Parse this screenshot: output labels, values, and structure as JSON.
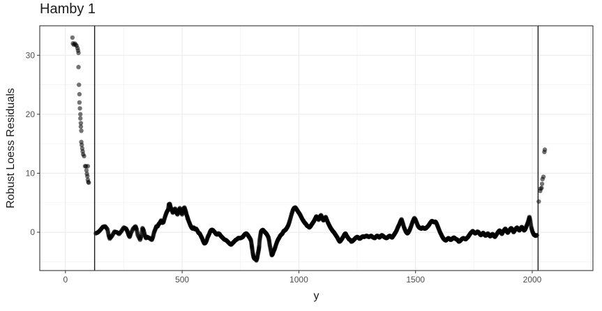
{
  "chart_data": {
    "type": "scatter",
    "title": "Hamby 1",
    "xlabel": "y",
    "ylabel": "Robust Loess Residuals",
    "xlim": [
      -110,
      2260
    ],
    "ylim": [
      -6.5,
      35
    ],
    "x_ticks": [
      0,
      500,
      1000,
      1500,
      2000
    ],
    "x_tick_labels": [
      "0",
      "500",
      "1000",
      "1500",
      "2000"
    ],
    "y_ticks": [
      0,
      10,
      20,
      30
    ],
    "y_tick_labels": [
      "0",
      "10",
      "20",
      "30"
    ],
    "vlines": [
      125,
      2025
    ],
    "grid": true,
    "theme": "bw",
    "point_color": "#000000",
    "point_alpha": 0.55,
    "left_groove": [
      [
        30,
        33.0
      ],
      [
        32,
        32.0
      ],
      [
        36,
        31.8
      ],
      [
        40,
        32.0
      ],
      [
        44,
        31.8
      ],
      [
        48,
        31.6
      ],
      [
        52,
        31.2
      ],
      [
        54,
        30.8
      ],
      [
        56,
        30.4
      ],
      [
        56,
        28.0
      ],
      [
        58,
        25.0
      ],
      [
        60,
        23.4
      ],
      [
        60,
        22.0
      ],
      [
        62,
        21.0
      ],
      [
        64,
        20.0
      ],
      [
        64,
        19.3
      ],
      [
        66,
        18.5
      ],
      [
        66,
        17.9
      ],
      [
        68,
        17.2
      ],
      [
        68,
        15.3
      ],
      [
        70,
        14.8
      ],
      [
        72,
        14.2
      ],
      [
        74,
        13.7
      ],
      [
        76,
        13.2
      ],
      [
        80,
        12.9
      ],
      [
        84,
        11.2
      ],
      [
        88,
        11.2
      ],
      [
        90,
        10.5
      ],
      [
        92,
        9.9
      ],
      [
        94,
        9.5
      ],
      [
        96,
        8.9
      ],
      [
        98,
        8.5
      ],
      [
        100,
        8.4
      ],
      [
        96,
        11.2
      ]
    ],
    "right_groove": [
      [
        2028,
        5.2
      ],
      [
        2034,
        7.0
      ],
      [
        2036,
        7.4
      ],
      [
        2040,
        7.5
      ],
      [
        2042,
        8.2
      ],
      [
        2044,
        9.0
      ],
      [
        2048,
        9.4
      ],
      [
        2052,
        13.6
      ],
      [
        2054,
        14.0
      ]
    ],
    "trace": [
      [
        130,
        -0.2
      ],
      [
        140,
        0.0
      ],
      [
        150,
        0.4
      ],
      [
        160,
        0.9
      ],
      [
        170,
        1.0
      ],
      [
        180,
        0.5
      ],
      [
        185,
        -0.5
      ],
      [
        190,
        -1.1
      ],
      [
        200,
        -0.6
      ],
      [
        210,
        0.1
      ],
      [
        220,
        0.0
      ],
      [
        230,
        -0.3
      ],
      [
        240,
        0.2
      ],
      [
        250,
        0.8
      ],
      [
        260,
        0.6
      ],
      [
        265,
        0.2
      ],
      [
        270,
        -0.4
      ],
      [
        275,
        -0.8
      ],
      [
        280,
        -0.2
      ],
      [
        290,
        0.6
      ],
      [
        300,
        1.0
      ],
      [
        305,
        0.5
      ],
      [
        310,
        -0.5
      ],
      [
        320,
        -1.3
      ],
      [
        325,
        -0.6
      ],
      [
        330,
        0.7
      ],
      [
        335,
        0.3
      ],
      [
        340,
        -0.5
      ],
      [
        345,
        -1.0
      ],
      [
        350,
        -0.8
      ],
      [
        355,
        -0.9
      ],
      [
        360,
        -1.0
      ],
      [
        370,
        -1.3
      ],
      [
        375,
        -0.8
      ],
      [
        380,
        0.0
      ],
      [
        385,
        0.5
      ],
      [
        390,
        1.0
      ],
      [
        395,
        1.0
      ],
      [
        400,
        1.4
      ],
      [
        405,
        1.6
      ],
      [
        410,
        2.0
      ],
      [
        415,
        1.6
      ],
      [
        420,
        1.7
      ],
      [
        425,
        2.4
      ],
      [
        430,
        3.0
      ],
      [
        435,
        3.5
      ],
      [
        440,
        3.8
      ],
      [
        443,
        4.7
      ],
      [
        447,
        4.8
      ],
      [
        450,
        4.3
      ],
      [
        455,
        3.8
      ],
      [
        460,
        3.3
      ],
      [
        465,
        3.7
      ],
      [
        470,
        4.0
      ],
      [
        475,
        3.4
      ],
      [
        480,
        3.0
      ],
      [
        485,
        3.6
      ],
      [
        490,
        4.1
      ],
      [
        495,
        3.5
      ],
      [
        500,
        3.0
      ],
      [
        505,
        3.9
      ],
      [
        510,
        4.2
      ],
      [
        515,
        3.6
      ],
      [
        518,
        3.1
      ],
      [
        522,
        2.6
      ],
      [
        525,
        2.2
      ],
      [
        530,
        1.7
      ],
      [
        535,
        1.2
      ],
      [
        540,
        0.8
      ],
      [
        545,
        0.6
      ],
      [
        550,
        0.8
      ],
      [
        555,
        0.5
      ],
      [
        560,
        0.6
      ],
      [
        565,
        0.3
      ],
      [
        570,
        -0.1
      ],
      [
        575,
        -0.2
      ],
      [
        580,
        -0.6
      ],
      [
        585,
        -1.0
      ],
      [
        590,
        -1.5
      ],
      [
        595,
        -1.9
      ],
      [
        600,
        -1.8
      ],
      [
        605,
        -1.4
      ],
      [
        610,
        -0.8
      ],
      [
        615,
        -0.4
      ],
      [
        620,
        0.1
      ],
      [
        625,
        0.4
      ],
      [
        630,
        0.4
      ],
      [
        635,
        0.2
      ],
      [
        640,
        0.0
      ],
      [
        645,
        -0.3
      ],
      [
        650,
        -0.4
      ],
      [
        655,
        -0.2
      ],
      [
        660,
        -0.3
      ],
      [
        665,
        -0.6
      ],
      [
        670,
        -0.8
      ],
      [
        675,
        -1.0
      ],
      [
        680,
        -1.2
      ],
      [
        685,
        -1.3
      ],
      [
        690,
        -1.4
      ],
      [
        695,
        -1.6
      ],
      [
        700,
        -1.8
      ],
      [
        705,
        -2.0
      ],
      [
        710,
        -2.1
      ],
      [
        715,
        -1.9
      ],
      [
        720,
        -1.7
      ],
      [
        725,
        -1.5
      ],
      [
        730,
        -1.3
      ],
      [
        735,
        -1.2
      ],
      [
        740,
        -1.0
      ],
      [
        745,
        -1.0
      ],
      [
        750,
        -1.0
      ],
      [
        755,
        -0.9
      ],
      [
        760,
        -0.8
      ],
      [
        765,
        -0.5
      ],
      [
        770,
        -0.3
      ],
      [
        775,
        -0.2
      ],
      [
        780,
        -0.4
      ],
      [
        785,
        -0.7
      ],
      [
        790,
        -1.0
      ],
      [
        795,
        -1.4
      ],
      [
        798,
        -2.2
      ],
      [
        800,
        -2.8
      ],
      [
        803,
        -3.6
      ],
      [
        806,
        -4.2
      ],
      [
        810,
        -4.5
      ],
      [
        815,
        -4.4
      ],
      [
        818,
        -4.8
      ],
      [
        822,
        -4.3
      ],
      [
        825,
        -3.6
      ],
      [
        828,
        -3.0
      ],
      [
        830,
        -2.4
      ],
      [
        832,
        -1.4
      ],
      [
        835,
        -0.6
      ],
      [
        838,
        0.1
      ],
      [
        842,
        0.3
      ],
      [
        846,
        0.4
      ],
      [
        850,
        0.2
      ],
      [
        855,
        0.0
      ],
      [
        860,
        -0.2
      ],
      [
        865,
        -0.5
      ],
      [
        870,
        -0.9
      ],
      [
        873,
        -1.5
      ],
      [
        876,
        -2.3
      ],
      [
        880,
        -3.1
      ],
      [
        884,
        -3.9
      ],
      [
        888,
        -3.7
      ],
      [
        892,
        -3.2
      ],
      [
        896,
        -2.9
      ],
      [
        900,
        -2.4
      ],
      [
        905,
        -1.8
      ],
      [
        910,
        -1.3
      ],
      [
        915,
        -1.0
      ],
      [
        920,
        -0.6
      ],
      [
        925,
        -0.4
      ],
      [
        930,
        -0.2
      ],
      [
        935,
        0.2
      ],
      [
        940,
        0.3
      ],
      [
        945,
        0.5
      ],
      [
        950,
        0.8
      ],
      [
        955,
        1.2
      ],
      [
        960,
        1.8
      ],
      [
        965,
        2.5
      ],
      [
        970,
        3.2
      ],
      [
        975,
        3.8
      ],
      [
        980,
        4.1
      ],
      [
        985,
        4.2
      ],
      [
        990,
        3.9
      ],
      [
        995,
        3.6
      ],
      [
        1000,
        3.3
      ],
      [
        1005,
        3.0
      ],
      [
        1010,
        2.6
      ],
      [
        1015,
        2.2
      ],
      [
        1020,
        1.9
      ],
      [
        1025,
        1.6
      ],
      [
        1030,
        1.4
      ],
      [
        1035,
        1.1
      ],
      [
        1040,
        1.0
      ],
      [
        1045,
        0.8
      ],
      [
        1050,
        1.0
      ],
      [
        1055,
        1.3
      ],
      [
        1060,
        1.6
      ],
      [
        1065,
        1.9
      ],
      [
        1070,
        2.3
      ],
      [
        1075,
        2.7
      ],
      [
        1080,
        2.4
      ],
      [
        1085,
        2.1
      ],
      [
        1090,
        2.6
      ],
      [
        1095,
        2.9
      ],
      [
        1100,
        2.4
      ],
      [
        1105,
        2.0
      ],
      [
        1110,
        2.2
      ],
      [
        1115,
        2.6
      ],
      [
        1120,
        2.1
      ],
      [
        1125,
        1.6
      ],
      [
        1130,
        1.2
      ],
      [
        1135,
        0.8
      ],
      [
        1140,
        0.5
      ],
      [
        1145,
        0.2
      ],
      [
        1150,
        0.0
      ],
      [
        1155,
        -0.3
      ],
      [
        1160,
        -0.6
      ],
      [
        1165,
        -0.9
      ],
      [
        1170,
        -1.3
      ],
      [
        1175,
        -1.6
      ],
      [
        1180,
        -1.4
      ],
      [
        1185,
        -1.1
      ],
      [
        1190,
        -0.8
      ],
      [
        1195,
        -0.4
      ],
      [
        1200,
        -0.2
      ],
      [
        1205,
        -0.6
      ],
      [
        1210,
        -0.9
      ],
      [
        1215,
        -1.2
      ],
      [
        1220,
        -1.3
      ],
      [
        1225,
        -1.6
      ],
      [
        1230,
        -1.5
      ],
      [
        1235,
        -1.3
      ],
      [
        1240,
        -1.1
      ],
      [
        1245,
        -0.9
      ],
      [
        1250,
        -0.8
      ],
      [
        1255,
        -0.9
      ],
      [
        1260,
        -1.1
      ],
      [
        1265,
        -1.0
      ],
      [
        1270,
        -0.8
      ],
      [
        1275,
        -0.7
      ],
      [
        1280,
        -0.8
      ],
      [
        1285,
        -0.7
      ],
      [
        1290,
        -0.6
      ],
      [
        1295,
        -0.7
      ],
      [
        1300,
        -0.8
      ],
      [
        1305,
        -0.7
      ],
      [
        1310,
        -0.6
      ],
      [
        1315,
        -0.8
      ],
      [
        1320,
        -0.9
      ],
      [
        1325,
        -1.0
      ],
      [
        1330,
        -0.8
      ],
      [
        1335,
        -0.6
      ],
      [
        1340,
        -0.7
      ],
      [
        1345,
        -0.9
      ],
      [
        1350,
        -0.7
      ],
      [
        1355,
        -0.5
      ],
      [
        1360,
        -0.6
      ],
      [
        1365,
        -0.8
      ],
      [
        1370,
        -0.9
      ],
      [
        1375,
        -1.0
      ],
      [
        1380,
        -0.9
      ],
      [
        1385,
        -0.7
      ],
      [
        1390,
        -0.6
      ],
      [
        1395,
        -0.8
      ],
      [
        1400,
        -0.9
      ],
      [
        1405,
        -0.6
      ],
      [
        1410,
        -0.3
      ],
      [
        1415,
        0.0
      ],
      [
        1420,
        0.4
      ],
      [
        1425,
        0.9
      ],
      [
        1430,
        1.3
      ],
      [
        1435,
        1.8
      ],
      [
        1440,
        2.2
      ],
      [
        1445,
        1.6
      ],
      [
        1450,
        0.9
      ],
      [
        1455,
        0.4
      ],
      [
        1460,
        0.0
      ],
      [
        1465,
        -0.2
      ],
      [
        1470,
        0.0
      ],
      [
        1475,
        0.4
      ],
      [
        1480,
        0.9
      ],
      [
        1485,
        1.5
      ],
      [
        1490,
        2.0
      ],
      [
        1495,
        2.4
      ],
      [
        1500,
        2.1
      ],
      [
        1505,
        1.6
      ],
      [
        1510,
        1.1
      ],
      [
        1515,
        0.8
      ],
      [
        1520,
        0.7
      ],
      [
        1525,
        0.6
      ],
      [
        1530,
        0.8
      ],
      [
        1535,
        0.7
      ],
      [
        1540,
        0.6
      ],
      [
        1545,
        0.7
      ],
      [
        1550,
        0.9
      ],
      [
        1555,
        1.1
      ],
      [
        1560,
        1.4
      ],
      [
        1565,
        1.7
      ],
      [
        1570,
        1.9
      ],
      [
        1575,
        1.8
      ],
      [
        1580,
        1.7
      ],
      [
        1585,
        1.8
      ],
      [
        1590,
        1.5
      ],
      [
        1595,
        1.0
      ],
      [
        1600,
        0.5
      ],
      [
        1605,
        0.0
      ],
      [
        1610,
        -0.4
      ],
      [
        1615,
        -0.8
      ],
      [
        1620,
        -1.1
      ],
      [
        1625,
        -1.3
      ],
      [
        1630,
        -1.4
      ],
      [
        1635,
        -1.2
      ],
      [
        1640,
        -1.0
      ],
      [
        1645,
        -1.1
      ],
      [
        1650,
        -1.3
      ],
      [
        1655,
        -1.2
      ],
      [
        1660,
        -1.0
      ],
      [
        1665,
        -0.9
      ],
      [
        1670,
        -1.1
      ],
      [
        1675,
        -1.2
      ],
      [
        1680,
        -1.3
      ],
      [
        1685,
        -1.6
      ],
      [
        1690,
        -1.5
      ],
      [
        1695,
        -1.3
      ],
      [
        1700,
        -1.1
      ],
      [
        1705,
        -1.0
      ],
      [
        1710,
        -1.1
      ],
      [
        1715,
        -1.2
      ],
      [
        1720,
        -1.0
      ],
      [
        1725,
        -0.8
      ],
      [
        1730,
        -0.5
      ],
      [
        1735,
        -0.2
      ],
      [
        1740,
        0.0
      ],
      [
        1745,
        0.2
      ],
      [
        1750,
        0.0
      ],
      [
        1755,
        -0.2
      ],
      [
        1760,
        -0.1
      ],
      [
        1765,
        0.1
      ],
      [
        1770,
        0.0
      ],
      [
        1775,
        -0.3
      ],
      [
        1780,
        -0.5
      ],
      [
        1785,
        -0.3
      ],
      [
        1790,
        -0.1
      ],
      [
        1795,
        -0.4
      ],
      [
        1800,
        -0.6
      ],
      [
        1805,
        -0.4
      ],
      [
        1810,
        -0.2
      ],
      [
        1815,
        -0.5
      ],
      [
        1820,
        -0.7
      ],
      [
        1825,
        -0.5
      ],
      [
        1830,
        -0.3
      ],
      [
        1835,
        -0.6
      ],
      [
        1840,
        -0.8
      ],
      [
        1845,
        -0.5
      ],
      [
        1850,
        -0.2
      ],
      [
        1855,
        0.1
      ],
      [
        1860,
        0.3
      ],
      [
        1865,
        0.0
      ],
      [
        1870,
        -0.3
      ],
      [
        1875,
        0.1
      ],
      [
        1880,
        0.4
      ],
      [
        1885,
        0.6
      ],
      [
        1890,
        0.2
      ],
      [
        1895,
        -0.1
      ],
      [
        1900,
        0.2
      ],
      [
        1905,
        0.5
      ],
      [
        1910,
        0.7
      ],
      [
        1915,
        0.4
      ],
      [
        1920,
        0.0
      ],
      [
        1925,
        0.3
      ],
      [
        1930,
        0.6
      ],
      [
        1935,
        0.8
      ],
      [
        1940,
        0.5
      ],
      [
        1945,
        0.3
      ],
      [
        1950,
        0.6
      ],
      [
        1955,
        0.9
      ],
      [
        1960,
        0.6
      ],
      [
        1965,
        0.3
      ],
      [
        1970,
        0.5
      ],
      [
        1975,
        1.0
      ],
      [
        1980,
        1.5
      ],
      [
        1985,
        2.1
      ],
      [
        1988,
        2.6
      ],
      [
        1992,
        1.8
      ],
      [
        1996,
        0.8
      ],
      [
        2000,
        0.2
      ],
      [
        2005,
        -0.3
      ],
      [
        2010,
        -0.5
      ],
      [
        2015,
        -0.6
      ],
      [
        2020,
        -0.5
      ]
    ]
  }
}
